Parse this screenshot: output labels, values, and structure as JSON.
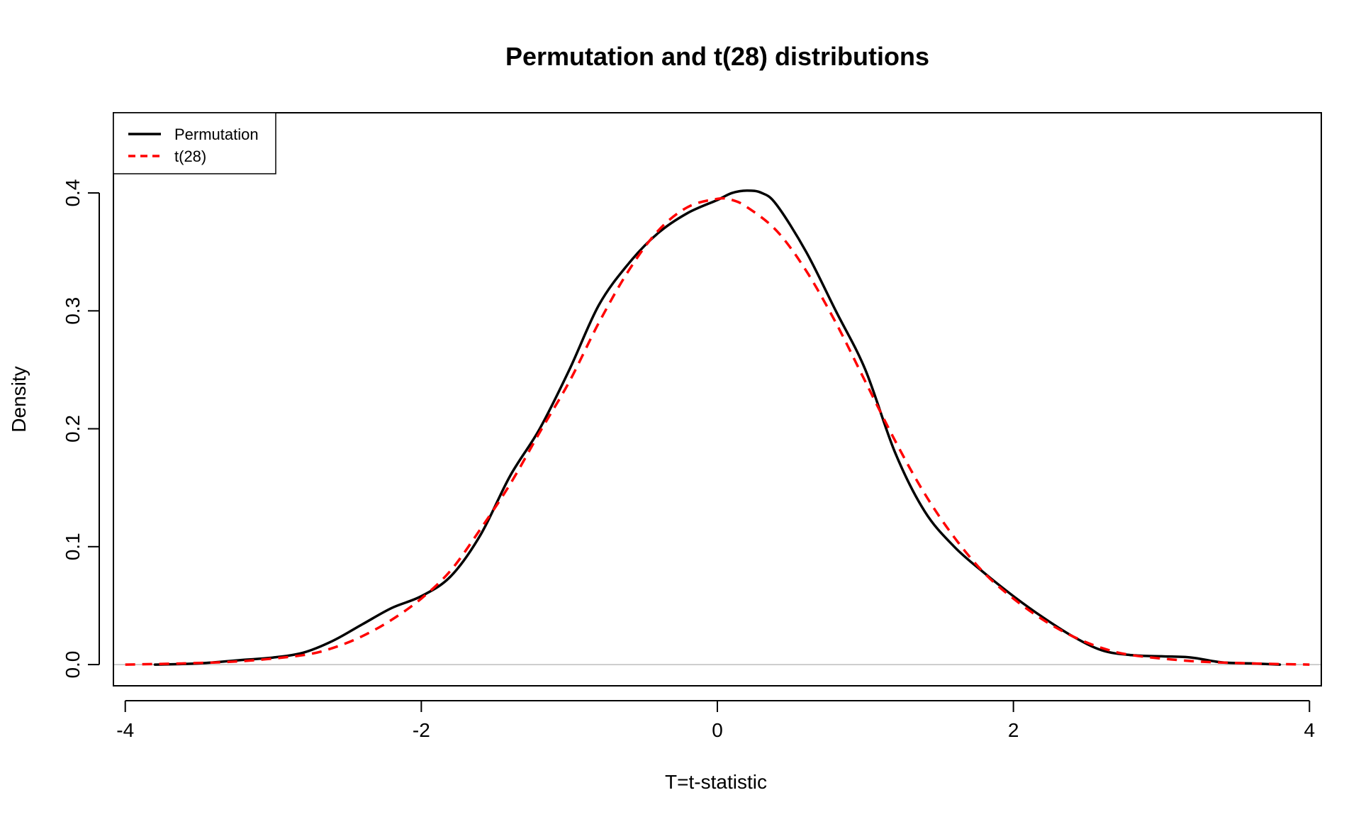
{
  "chart_data": {
    "type": "line",
    "title": "Permutation and t(28) distributions",
    "xlabel": "T=t-statistic",
    "ylabel": "Density",
    "xlim": [
      -4.08,
      4.08
    ],
    "ylim": [
      -0.018,
      0.468
    ],
    "x_ticks": [
      -4,
      -2,
      0,
      2,
      4
    ],
    "x_tick_labels": [
      "-4",
      "-2",
      "0",
      "2",
      "4"
    ],
    "y_ticks": [
      0.0,
      0.1,
      0.2,
      0.3,
      0.4
    ],
    "y_tick_labels": [
      "0.0",
      "0.1",
      "0.2",
      "0.3",
      "0.4"
    ],
    "baseline_y": 0,
    "legend_position": "top-left",
    "grid": false,
    "series": [
      {
        "name": "Permutation",
        "color": "#000000",
        "dash": "solid",
        "points": [
          [
            -3.8,
            0.0
          ],
          [
            -3.5,
            0.001
          ],
          [
            -3.2,
            0.004
          ],
          [
            -3.0,
            0.006
          ],
          [
            -2.8,
            0.01
          ],
          [
            -2.6,
            0.02
          ],
          [
            -2.4,
            0.034
          ],
          [
            -2.2,
            0.048
          ],
          [
            -2.0,
            0.058
          ],
          [
            -1.8,
            0.075
          ],
          [
            -1.6,
            0.11
          ],
          [
            -1.4,
            0.16
          ],
          [
            -1.2,
            0.2
          ],
          [
            -1.0,
            0.25
          ],
          [
            -0.8,
            0.305
          ],
          [
            -0.6,
            0.34
          ],
          [
            -0.4,
            0.366
          ],
          [
            -0.2,
            0.383
          ],
          [
            0.0,
            0.394
          ],
          [
            0.1,
            0.4
          ],
          [
            0.2,
            0.402
          ],
          [
            0.3,
            0.4
          ],
          [
            0.4,
            0.39
          ],
          [
            0.6,
            0.35
          ],
          [
            0.8,
            0.3
          ],
          [
            1.0,
            0.25
          ],
          [
            1.2,
            0.18
          ],
          [
            1.4,
            0.13
          ],
          [
            1.6,
            0.1
          ],
          [
            1.8,
            0.078
          ],
          [
            2.0,
            0.058
          ],
          [
            2.2,
            0.04
          ],
          [
            2.4,
            0.024
          ],
          [
            2.6,
            0.012
          ],
          [
            2.8,
            0.008
          ],
          [
            3.0,
            0.007
          ],
          [
            3.2,
            0.006
          ],
          [
            3.4,
            0.002
          ],
          [
            3.6,
            0.001
          ],
          [
            3.8,
            0.0
          ]
        ]
      },
      {
        "name": "t(28)",
        "color": "#ff0000",
        "dash": "dashed",
        "points": [
          [
            -4.0,
            0.0
          ],
          [
            -3.6,
            0.001
          ],
          [
            -3.2,
            0.003
          ],
          [
            -2.8,
            0.008
          ],
          [
            -2.6,
            0.014
          ],
          [
            -2.4,
            0.024
          ],
          [
            -2.2,
            0.038
          ],
          [
            -2.0,
            0.056
          ],
          [
            -1.8,
            0.08
          ],
          [
            -1.6,
            0.115
          ],
          [
            -1.4,
            0.153
          ],
          [
            -1.2,
            0.197
          ],
          [
            -1.0,
            0.24
          ],
          [
            -0.8,
            0.29
          ],
          [
            -0.6,
            0.334
          ],
          [
            -0.4,
            0.368
          ],
          [
            -0.2,
            0.388
          ],
          [
            0.0,
            0.395
          ],
          [
            0.1,
            0.394
          ],
          [
            0.2,
            0.388
          ],
          [
            0.4,
            0.368
          ],
          [
            0.6,
            0.334
          ],
          [
            0.8,
            0.29
          ],
          [
            1.0,
            0.24
          ],
          [
            1.2,
            0.19
          ],
          [
            1.4,
            0.145
          ],
          [
            1.6,
            0.108
          ],
          [
            1.8,
            0.078
          ],
          [
            2.0,
            0.056
          ],
          [
            2.2,
            0.038
          ],
          [
            2.4,
            0.024
          ],
          [
            2.6,
            0.014
          ],
          [
            2.8,
            0.008
          ],
          [
            3.2,
            0.003
          ],
          [
            3.6,
            0.001
          ],
          [
            4.0,
            0.0
          ]
        ]
      }
    ]
  }
}
